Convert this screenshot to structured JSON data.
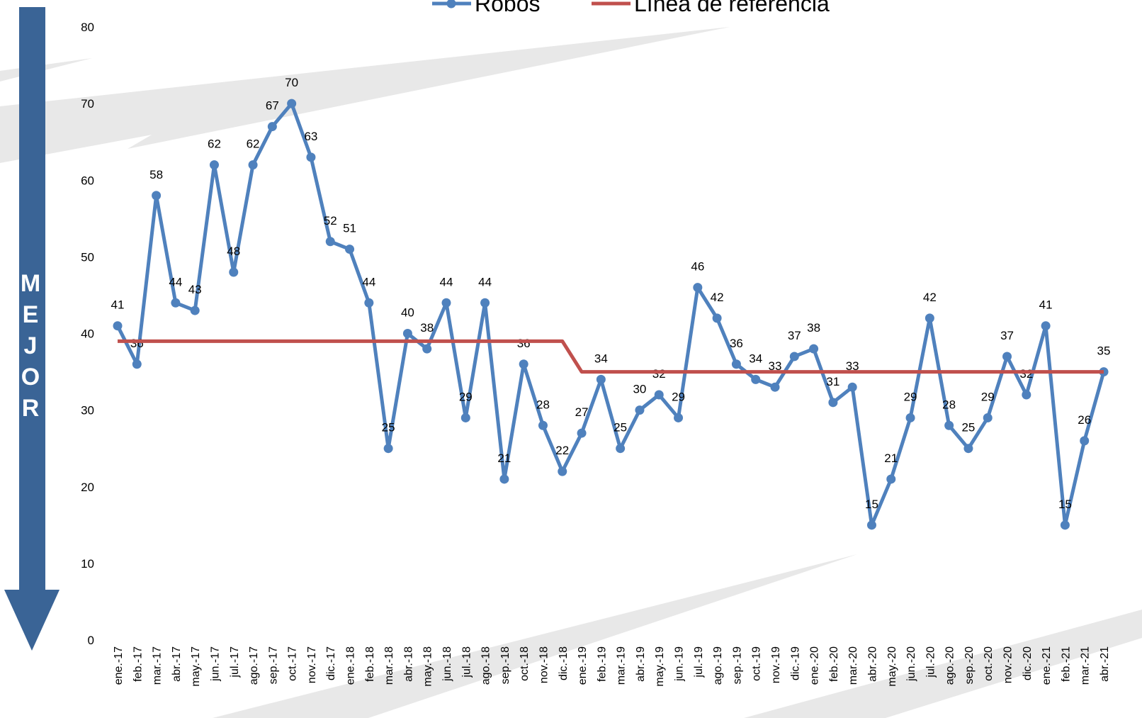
{
  "chart_data": {
    "type": "line",
    "annotation": "MEJOR",
    "categories": [
      "ene.-17",
      "feb.-17",
      "mar.-17",
      "abr.-17",
      "may.-17",
      "jun.-17",
      "jul.-17",
      "ago.-17",
      "sep.-17",
      "oct.-17",
      "nov.-17",
      "dic.-17",
      "ene.-18",
      "feb.-18",
      "mar.-18",
      "abr.-18",
      "may.-18",
      "jun.-18",
      "jul.-18",
      "ago.-18",
      "sep.-18",
      "oct.-18",
      "nov.-18",
      "dic.-18",
      "ene.-19",
      "feb.-19",
      "mar.-19",
      "abr.-19",
      "may.-19",
      "jun.-19",
      "jul.-19",
      "ago.-19",
      "sep.-19",
      "oct.-19",
      "nov.-19",
      "dic.-19",
      "ene.-20",
      "feb.-20",
      "mar.-20",
      "abr.-20",
      "may.-20",
      "jun.-20",
      "jul.-20",
      "ago.-20",
      "sep.-20",
      "oct.-20",
      "nov.-20",
      "dic.-20",
      "ene.-21",
      "feb.-21",
      "mar.-21",
      "abr.-21"
    ],
    "series": [
      {
        "name": "Robos",
        "color": "#4f81bd",
        "markers": true,
        "data_labels": true,
        "values": [
          41,
          36,
          58,
          44,
          43,
          62,
          48,
          62,
          67,
          70,
          63,
          52,
          51,
          44,
          25,
          40,
          38,
          44,
          29,
          44,
          21,
          36,
          28,
          22,
          27,
          34,
          25,
          30,
          32,
          29,
          46,
          42,
          36,
          34,
          33,
          37,
          38,
          31,
          33,
          15,
          21,
          29,
          42,
          28,
          25,
          29,
          37,
          32,
          41,
          15,
          26,
          35
        ]
      },
      {
        "name": "Línea de referencia",
        "color": "#c0504d",
        "markers": false,
        "data_labels": false,
        "values": [
          39,
          39,
          39,
          39,
          39,
          39,
          39,
          39,
          39,
          39,
          39,
          39,
          39,
          39,
          39,
          39,
          39,
          39,
          39,
          39,
          39,
          39,
          39,
          39,
          35,
          35,
          35,
          35,
          35,
          35,
          35,
          35,
          35,
          35,
          35,
          35,
          35,
          35,
          35,
          35,
          35,
          35,
          35,
          35,
          35,
          35,
          35,
          35,
          35,
          35,
          35,
          35
        ]
      }
    ],
    "ylim": [
      0,
      80
    ],
    "yticks": [
      0,
      10,
      20,
      30,
      40,
      50,
      60,
      70,
      80
    ],
    "grid": false,
    "legend": "top"
  }
}
